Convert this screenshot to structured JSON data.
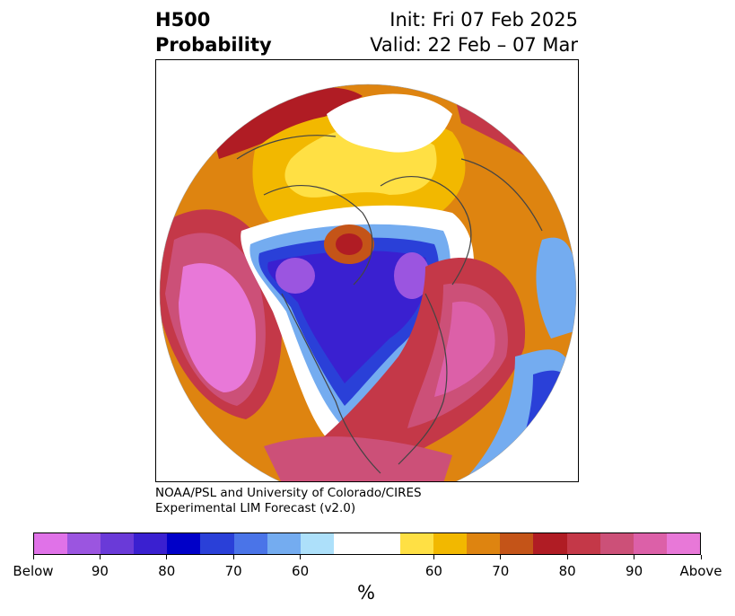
{
  "title": {
    "left_line1": "H500",
    "left_line2": "Probability",
    "right_line1": "Init: Fri 07 Feb 2025",
    "right_line2": "Valid: 22 Feb – 07 Mar"
  },
  "credit": {
    "line1": "NOAA/PSL and University of Colorado/CIRES",
    "line2": "Experimental LIM Forecast (v2.0)"
  },
  "colorbar": {
    "unit": "%",
    "colors": [
      "#e072e8",
      "#9b55e0",
      "#6a3ad8",
      "#3a20d0",
      "#0000c8",
      "#2a40d8",
      "#4a74e8",
      "#74acf0",
      "#ade0fa",
      "#ffffff",
      "#ffffff",
      "#ffe044",
      "#f2b800",
      "#de8410",
      "#c45418",
      "#b01c24",
      "#c43848",
      "#cc5078",
      "#dc60a8",
      "#e878d8"
    ],
    "ticks": [
      "Below",
      "90",
      "80",
      "70",
      "60",
      "60",
      "70",
      "80",
      "90",
      "Above"
    ]
  },
  "map": {
    "projection": "north-polar-stereographic",
    "palette": {
      "below_deep": "#0000c8",
      "below_strong": "#2a40d8",
      "below_mid": "#4a74e8",
      "below_light": "#74acf0",
      "below_pale": "#ade0fa",
      "below_violet": "#9b55e0",
      "below_purple": "#6a3ad8",
      "above_yellow": "#ffe044",
      "above_gold": "#f2b800",
      "above_orange": "#de8410",
      "above_rust": "#c45418",
      "above_red": "#b01c24",
      "above_crimson": "#c43848",
      "above_rose": "#cc5078",
      "above_pink": "#dc60a8",
      "above_magenta": "#e878d8",
      "coast": "#444444"
    }
  }
}
